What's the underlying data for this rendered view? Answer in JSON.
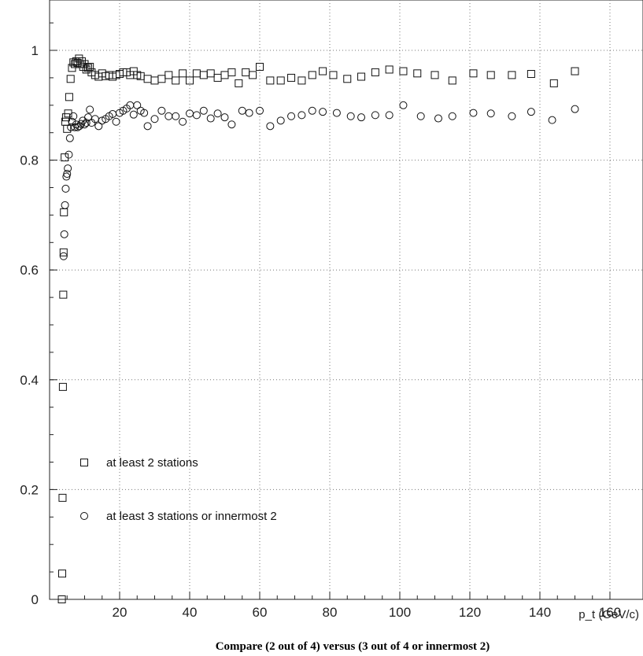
{
  "chart_data": {
    "type": "scatter",
    "title": "Compare (2 out of 4) versus (3 out of 4 or innermost 2)",
    "xlabel": "p_t (GeV/c)",
    "ylabel": "",
    "xlim": [
      0,
      165
    ],
    "ylim": [
      0,
      1.08
    ],
    "xticks": [
      20,
      40,
      60,
      80,
      100,
      120,
      140,
      160
    ],
    "yticks": [
      0,
      0.2,
      0.4,
      0.6,
      0.8,
      1
    ],
    "grid": true,
    "legend_position": "bottom-left",
    "series": [
      {
        "name": "at least 2 stations",
        "marker": "square",
        "points": [
          [
            3.5,
            0.0
          ],
          [
            3.6,
            0.047
          ],
          [
            3.7,
            0.185
          ],
          [
            3.8,
            0.387
          ],
          [
            3.9,
            0.555
          ],
          [
            4.0,
            0.632
          ],
          [
            4.1,
            0.705
          ],
          [
            4.3,
            0.805
          ],
          [
            4.5,
            0.87
          ],
          [
            4.7,
            0.878
          ],
          [
            5.0,
            0.857
          ],
          [
            5.3,
            0.885
          ],
          [
            5.6,
            0.915
          ],
          [
            6.0,
            0.948
          ],
          [
            6.4,
            0.968
          ],
          [
            6.8,
            0.978
          ],
          [
            7.2,
            0.975
          ],
          [
            7.6,
            0.98
          ],
          [
            8.0,
            0.977
          ],
          [
            8.4,
            0.985
          ],
          [
            8.8,
            0.975
          ],
          [
            9.2,
            0.98
          ],
          [
            9.6,
            0.97
          ],
          [
            10.0,
            0.975
          ],
          [
            10.5,
            0.965
          ],
          [
            11.0,
            0.968
          ],
          [
            11.5,
            0.97
          ],
          [
            12.0,
            0.96
          ],
          [
            13.0,
            0.955
          ],
          [
            14.0,
            0.952
          ],
          [
            15.0,
            0.958
          ],
          [
            16.0,
            0.953
          ],
          [
            17.0,
            0.955
          ],
          [
            18.0,
            0.952
          ],
          [
            19.0,
            0.955
          ],
          [
            20.0,
            0.957
          ],
          [
            21.0,
            0.96
          ],
          [
            22.0,
            0.96
          ],
          [
            23.0,
            0.955
          ],
          [
            24.0,
            0.962
          ],
          [
            25.0,
            0.955
          ],
          [
            26.0,
            0.953
          ],
          [
            28.0,
            0.948
          ],
          [
            30.0,
            0.945
          ],
          [
            32.0,
            0.948
          ],
          [
            34.0,
            0.955
          ],
          [
            36.0,
            0.945
          ],
          [
            38.0,
            0.958
          ],
          [
            40.0,
            0.945
          ],
          [
            42.0,
            0.958
          ],
          [
            44.0,
            0.955
          ],
          [
            46.0,
            0.958
          ],
          [
            48.0,
            0.95
          ],
          [
            50.0,
            0.955
          ],
          [
            52.0,
            0.96
          ],
          [
            54.0,
            0.94
          ],
          [
            56.0,
            0.96
          ],
          [
            58.0,
            0.955
          ],
          [
            60.0,
            0.97
          ],
          [
            63.0,
            0.945
          ],
          [
            66.0,
            0.945
          ],
          [
            69.0,
            0.95
          ],
          [
            72.0,
            0.945
          ],
          [
            75.0,
            0.955
          ],
          [
            78.0,
            0.962
          ],
          [
            81.0,
            0.955
          ],
          [
            85.0,
            0.948
          ],
          [
            89.0,
            0.952
          ],
          [
            93.0,
            0.96
          ],
          [
            97.0,
            0.965
          ],
          [
            101.0,
            0.962
          ],
          [
            105.0,
            0.958
          ],
          [
            110.0,
            0.955
          ],
          [
            115.0,
            0.945
          ],
          [
            121.0,
            0.958
          ],
          [
            126.0,
            0.955
          ],
          [
            132.0,
            0.955
          ],
          [
            137.5,
            0.957
          ],
          [
            144.0,
            0.94
          ],
          [
            150.0,
            0.962
          ]
        ]
      },
      {
        "name": "at least 3 stations or innermost 2",
        "marker": "circle",
        "points": [
          [
            4.0,
            0.625
          ],
          [
            4.2,
            0.665
          ],
          [
            4.4,
            0.718
          ],
          [
            4.6,
            0.748
          ],
          [
            4.8,
            0.77
          ],
          [
            5.0,
            0.775
          ],
          [
            5.2,
            0.785
          ],
          [
            5.5,
            0.81
          ],
          [
            5.8,
            0.84
          ],
          [
            6.1,
            0.86
          ],
          [
            6.4,
            0.87
          ],
          [
            6.8,
            0.88
          ],
          [
            7.2,
            0.86
          ],
          [
            7.6,
            0.865
          ],
          [
            8.0,
            0.86
          ],
          [
            8.5,
            0.862
          ],
          [
            9.0,
            0.866
          ],
          [
            9.5,
            0.872
          ],
          [
            10.0,
            0.865
          ],
          [
            10.5,
            0.868
          ],
          [
            11.0,
            0.878
          ],
          [
            11.5,
            0.892
          ],
          [
            12.0,
            0.868
          ],
          [
            13.0,
            0.875
          ],
          [
            14.0,
            0.862
          ],
          [
            15.0,
            0.872
          ],
          [
            16.0,
            0.875
          ],
          [
            17.0,
            0.88
          ],
          [
            18.0,
            0.884
          ],
          [
            19.0,
            0.87
          ],
          [
            20.0,
            0.886
          ],
          [
            21.0,
            0.89
          ],
          [
            22.0,
            0.894
          ],
          [
            23.0,
            0.9
          ],
          [
            24.0,
            0.883
          ],
          [
            25.0,
            0.9
          ],
          [
            26.0,
            0.89
          ],
          [
            27.0,
            0.886
          ],
          [
            28.0,
            0.862
          ],
          [
            30.0,
            0.875
          ],
          [
            32.0,
            0.89
          ],
          [
            34.0,
            0.88
          ],
          [
            36.0,
            0.88
          ],
          [
            38.0,
            0.87
          ],
          [
            40.0,
            0.885
          ],
          [
            42.0,
            0.882
          ],
          [
            44.0,
            0.89
          ],
          [
            46.0,
            0.876
          ],
          [
            48.0,
            0.885
          ],
          [
            50.0,
            0.878
          ],
          [
            52.0,
            0.865
          ],
          [
            55.0,
            0.89
          ],
          [
            57.0,
            0.886
          ],
          [
            60.0,
            0.89
          ],
          [
            63.0,
            0.862
          ],
          [
            66.0,
            0.872
          ],
          [
            69.0,
            0.88
          ],
          [
            72.0,
            0.882
          ],
          [
            75.0,
            0.89
          ],
          [
            78.0,
            0.888
          ],
          [
            82.0,
            0.886
          ],
          [
            86.0,
            0.88
          ],
          [
            89.0,
            0.878
          ],
          [
            93.0,
            0.882
          ],
          [
            97.0,
            0.882
          ],
          [
            101.0,
            0.9
          ],
          [
            106.0,
            0.88
          ],
          [
            111.0,
            0.876
          ],
          [
            115.0,
            0.88
          ],
          [
            121.0,
            0.886
          ],
          [
            126.0,
            0.885
          ],
          [
            132.0,
            0.88
          ],
          [
            137.5,
            0.888
          ],
          [
            143.5,
            0.873
          ],
          [
            150.0,
            0.893
          ]
        ]
      }
    ]
  }
}
